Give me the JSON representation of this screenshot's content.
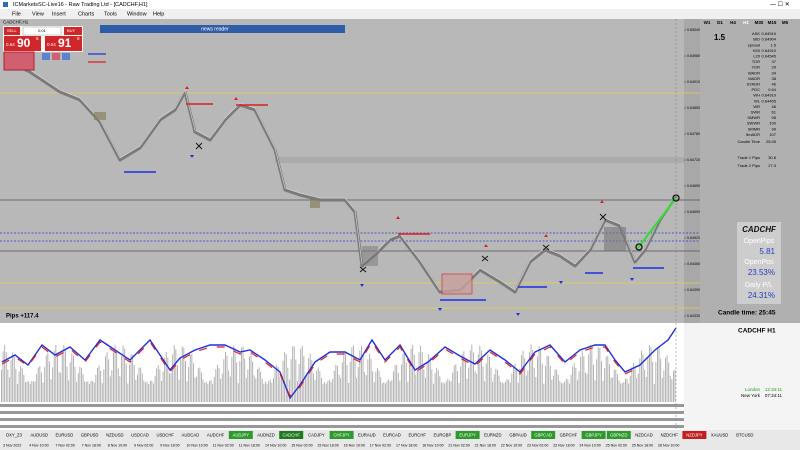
{
  "window": {
    "title": "ICMarketsSC-Live16 - Raw Trading Ltd - [CADCHF,H1]"
  },
  "menu": [
    "File",
    "View",
    "Insert",
    "Charts",
    "Tools",
    "Window",
    "Help"
  ],
  "chart_tab": "CADCHF,H1",
  "trade_panel": {
    "sell": "SELL",
    "buy": "BUY",
    "lot": "0.01",
    "sell_price": [
      "0.64",
      "90",
      "5"
    ],
    "buy_price": [
      "0.64",
      "91",
      "0"
    ]
  },
  "news_reader": "news reader",
  "timeframes": [
    "W1",
    "D1",
    "H4",
    "H1",
    "M30",
    "M15",
    "M5"
  ],
  "info_panel": {
    "spread_big": "1.5",
    "rows": [
      [
        "ASK",
        "0.64916"
      ],
      [
        "BID",
        "0.64904"
      ],
      [
        "spread",
        "1.5"
      ],
      [
        "H20",
        "0.64910"
      ],
      [
        "L20",
        "0.64545"
      ],
      [
        "TDR",
        "37"
      ],
      [
        "YDR",
        "29"
      ],
      [
        "WADR",
        "34"
      ],
      [
        "MADR",
        "38"
      ],
      [
        "6YADR",
        "46"
      ],
      [
        "PDC",
        "0.64"
      ],
      [
        "WH",
        "0.64910"
      ],
      [
        "WL",
        "0.64455"
      ],
      [
        "WR",
        "46"
      ],
      [
        "SWR",
        "61"
      ],
      [
        "SMWR",
        "98"
      ],
      [
        "SWWR",
        "100"
      ],
      [
        "SMMR",
        "99"
      ],
      [
        "5mADR",
        "107"
      ]
    ],
    "candle_time": [
      "Candle Time",
      "25:45"
    ],
    "trades": [
      [
        "Trade 1 Pips",
        "30.8"
      ],
      [
        "Trade 2 Pips",
        "27.3"
      ]
    ]
  },
  "stats_box": {
    "symbol": "CADCHF",
    "open_pips_label": "OpenPips",
    "open_pips": "5.81",
    "open_pos_label": "OpenPos",
    "open_pos": "23.53%",
    "daily_label": "Daily P/L",
    "daily": "24.31%"
  },
  "pips": "Pips +117.4",
  "candle_time": "Candle time:  25:45",
  "price_axis": [
    "0.65040",
    "0.64980",
    "0.64910",
    "0.64850",
    "0.64780",
    "0.64720",
    "0.64650",
    "0.64590",
    "0.64520",
    "0.64460",
    "0.64390",
    "0.64330"
  ],
  "indicator": {
    "title": "CADCHF  H1"
  },
  "sessions": [
    [
      "London",
      "12:34:11"
    ],
    [
      "New York",
      "07:34:11"
    ]
  ],
  "symbols": [
    {
      "name": "DXY_Z3",
      "state": "normal"
    },
    {
      "name": "AUDUSD",
      "state": "normal"
    },
    {
      "name": "EURUSD",
      "state": "normal"
    },
    {
      "name": "GBPUSD",
      "state": "normal"
    },
    {
      "name": "NZDUSD",
      "state": "normal"
    },
    {
      "name": "USDCAD",
      "state": "normal"
    },
    {
      "name": "USDCHF",
      "state": "normal"
    },
    {
      "name": "AUDCAD",
      "state": "normal"
    },
    {
      "name": "AUDCHF",
      "state": "normal"
    },
    {
      "name": "AUDJPY",
      "state": "green"
    },
    {
      "name": "AUDNZD",
      "state": "normal"
    },
    {
      "name": "CADCHF",
      "state": "active"
    },
    {
      "name": "CADJPY",
      "state": "normal"
    },
    {
      "name": "CHFJPY",
      "state": "green"
    },
    {
      "name": "EURAUD",
      "state": "normal"
    },
    {
      "name": "EURCAD",
      "state": "normal"
    },
    {
      "name": "EURCHF",
      "state": "normal"
    },
    {
      "name": "EURGBP",
      "state": "normal"
    },
    {
      "name": "EURJPY",
      "state": "green"
    },
    {
      "name": "EURNZD",
      "state": "normal"
    },
    {
      "name": "GBPAUD",
      "state": "normal"
    },
    {
      "name": "GBPCAD",
      "state": "green"
    },
    {
      "name": "GBPCHF",
      "state": "normal"
    },
    {
      "name": "GBPJPY",
      "state": "green"
    },
    {
      "name": "GBPNZD",
      "state": "green"
    },
    {
      "name": "NZDCAD",
      "state": "normal"
    },
    {
      "name": "NZDCHF",
      "state": "normal"
    },
    {
      "name": "NZDJPY",
      "state": "red"
    },
    {
      "name": "XAUUSD",
      "state": "normal"
    },
    {
      "name": "BTCUSD",
      "state": "normal"
    }
  ],
  "time_axis": [
    "3 Nov 2022",
    "4 Nov 10:00",
    "7 Nov 02:00",
    "7 Nov 18:00",
    "8 Nov 10:00",
    "9 Nov 02:00",
    "9 Nov 18:00",
    "10 Nov 10:00",
    "11 Nov 02:00",
    "11 Nov 18:00",
    "14 Nov 10:00",
    "15 Nov 02:00",
    "15 Nov 18:00",
    "16 Nov 10:00",
    "17 Nov 02:00",
    "17 Nov 18:00",
    "18 Nov 10:00",
    "21 Nov 02:00",
    "21 Nov 18:00",
    "22 Nov 10:00",
    "23 Nov 02:00",
    "23 Nov 18:00",
    "24 Nov 10:00",
    "25 Nov 02:00",
    "25 Nov 18:00",
    "28 Nov 10:00"
  ]
}
